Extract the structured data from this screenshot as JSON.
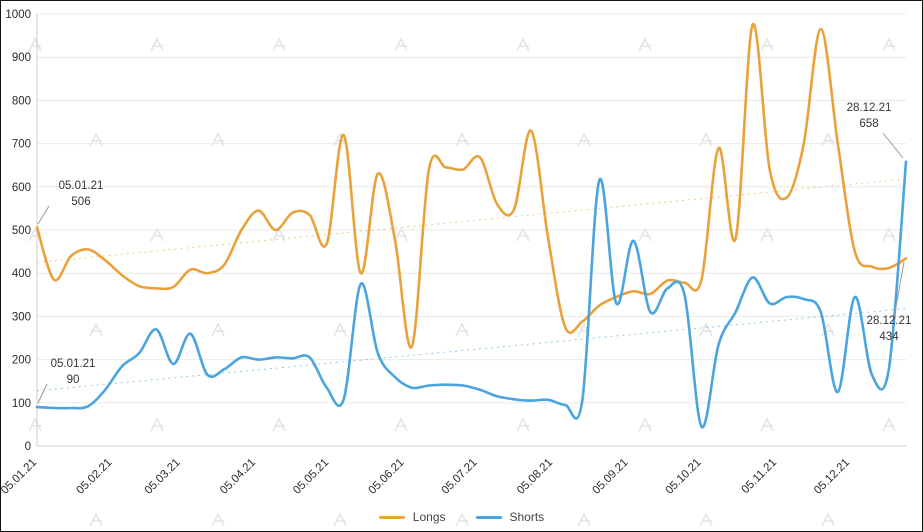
{
  "chart_data": {
    "type": "line",
    "title": "",
    "x_total_days": 357,
    "point_interval_days": 7,
    "x_tick_labels": [
      "05.01.21",
      "05.02.21",
      "05.03.21",
      "05.04.21",
      "05.05.21",
      "05.06.21",
      "05.07.21",
      "05.08.21",
      "05.09.21",
      "05.10.21",
      "05.11.21",
      "05.12.21"
    ],
    "x_tick_day_offsets": [
      0,
      31,
      59,
      90,
      120,
      151,
      181,
      212,
      243,
      273,
      304,
      334
    ],
    "ylim": [
      0,
      1000
    ],
    "y_tick_step": 100,
    "grid": "horizontal",
    "legend_position": "bottom-center",
    "series": [
      {
        "name": "Longs",
        "color": "#E9A23B",
        "values": [
          506,
          385,
          440,
          455,
          430,
          395,
          370,
          365,
          368,
          408,
          400,
          420,
          500,
          545,
          500,
          540,
          535,
          468,
          720,
          400,
          630,
          480,
          230,
          640,
          645,
          640,
          668,
          560,
          548,
          730,
          480,
          275,
          288,
          325,
          345,
          358,
          352,
          383,
          378,
          385,
          690,
          480,
          975,
          640,
          575,
          700,
          965,
          700,
          450,
          415,
          412,
          434
        ],
        "trend": {
          "start": 425,
          "end": 618
        }
      },
      {
        "name": "Shorts",
        "color": "#4AA4DE",
        "values": [
          90,
          88,
          88,
          92,
          130,
          185,
          215,
          270,
          190,
          260,
          165,
          178,
          205,
          200,
          205,
          203,
          205,
          135,
          108,
          375,
          215,
          160,
          135,
          140,
          142,
          140,
          130,
          115,
          108,
          105,
          107,
          95,
          105,
          615,
          330,
          475,
          310,
          365,
          350,
          45,
          235,
          310,
          390,
          330,
          345,
          340,
          310,
          125,
          345,
          165,
          180,
          658
        ],
        "trend": {
          "start": 128,
          "end": 318
        }
      }
    ],
    "annotations": [
      {
        "date": "05.01.21",
        "value": 506,
        "series": "Longs",
        "anchor": "start"
      },
      {
        "date": "05.01.21",
        "value": 90,
        "series": "Shorts",
        "anchor": "start"
      },
      {
        "date": "28.12.21",
        "value": 658,
        "series": "Shorts",
        "anchor": "end"
      },
      {
        "date": "28.12.21",
        "value": 434,
        "series": "Longs",
        "anchor": "end"
      }
    ]
  },
  "legend": {
    "items": [
      {
        "label": "Longs",
        "color": "#E9A23B"
      },
      {
        "label": "Shorts",
        "color": "#4AA4DE"
      }
    ]
  },
  "colors": {
    "grid": "#e9e9e9",
    "axis": "#cfcfcf",
    "tick_text": "#2b2b2b",
    "annotation_text": "#333333",
    "leader_line": "#9a9a9a",
    "watermark": "#e3e3e3"
  }
}
